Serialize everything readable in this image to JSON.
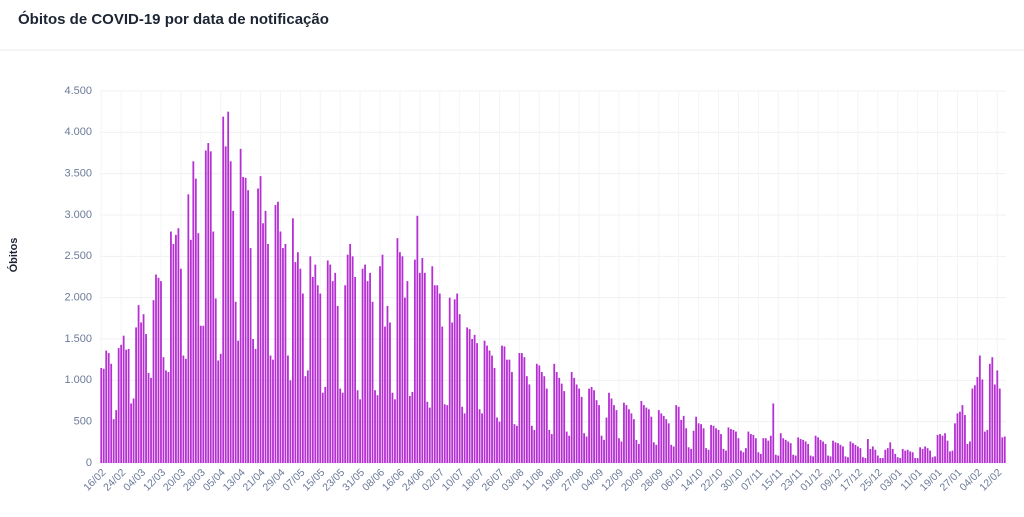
{
  "chart_data": {
    "type": "bar",
    "title": "Óbitos de COVID-19 por data de notificação",
    "y_label": "Óbitos",
    "color": "#b52fd3",
    "grid": true,
    "ylim": [
      0,
      4500
    ],
    "yticks": [
      0,
      500,
      {
        "value": 1000,
        "label": "1.000"
      },
      {
        "value": 1500,
        "label": "1.500"
      },
      {
        "value": 2000,
        "label": "2.000"
      },
      {
        "value": 2500,
        "label": "2.500"
      },
      {
        "value": 3000,
        "label": "3.000"
      },
      {
        "value": 3500,
        "label": "3.500"
      },
      {
        "value": 4000,
        "label": "4.000"
      },
      {
        "value": 4500,
        "label": "4.500"
      }
    ],
    "categories": [
      "16/02",
      null,
      null,
      null,
      null,
      null,
      null,
      null,
      "24/02",
      null,
      null,
      null,
      null,
      null,
      null,
      null,
      "04/03",
      null,
      null,
      null,
      null,
      null,
      null,
      null,
      "12/03",
      null,
      null,
      null,
      null,
      null,
      null,
      null,
      "20/03",
      null,
      null,
      null,
      null,
      null,
      null,
      null,
      "28/03",
      null,
      null,
      null,
      null,
      null,
      null,
      null,
      "05/04",
      null,
      null,
      null,
      null,
      null,
      null,
      null,
      "13/04",
      null,
      null,
      null,
      null,
      null,
      null,
      null,
      "21/04",
      null,
      null,
      null,
      null,
      null,
      null,
      null,
      "29/04",
      null,
      null,
      null,
      null,
      null,
      null,
      null,
      "07/05",
      null,
      null,
      null,
      null,
      null,
      null,
      null,
      "15/05",
      null,
      null,
      null,
      null,
      null,
      null,
      null,
      "23/05",
      null,
      null,
      null,
      null,
      null,
      null,
      null,
      "31/05",
      null,
      null,
      null,
      null,
      null,
      null,
      null,
      "08/06",
      null,
      null,
      null,
      null,
      null,
      null,
      null,
      "16/06",
      null,
      null,
      null,
      null,
      null,
      null,
      null,
      "24/06",
      null,
      null,
      null,
      null,
      null,
      null,
      null,
      "02/07",
      null,
      null,
      null,
      null,
      null,
      null,
      null,
      "10/07",
      null,
      null,
      null,
      null,
      null,
      null,
      null,
      "18/07",
      null,
      null,
      null,
      null,
      null,
      null,
      null,
      "26/07",
      null,
      null,
      null,
      null,
      null,
      null,
      null,
      "03/08",
      null,
      null,
      null,
      null,
      null,
      null,
      null,
      "11/08",
      null,
      null,
      null,
      null,
      null,
      null,
      null,
      "19/08",
      null,
      null,
      null,
      null,
      null,
      null,
      null,
      "27/08",
      null,
      null,
      null,
      null,
      null,
      null,
      null,
      "04/09",
      null,
      null,
      null,
      null,
      null,
      null,
      null,
      "12/09",
      null,
      null,
      null,
      null,
      null,
      null,
      null,
      "20/09",
      null,
      null,
      null,
      null,
      null,
      null,
      null,
      "28/09",
      null,
      null,
      null,
      null,
      null,
      null,
      null,
      "06/10",
      null,
      null,
      null,
      null,
      null,
      null,
      null,
      "14/10",
      null,
      null,
      null,
      null,
      null,
      null,
      null,
      "22/10",
      null,
      null,
      null,
      null,
      null,
      null,
      null,
      "30/10",
      null,
      null,
      null,
      null,
      null,
      null,
      null,
      "07/11",
      null,
      null,
      null,
      null,
      null,
      null,
      null,
      "15/11",
      null,
      null,
      null,
      null,
      null,
      null,
      null,
      "23/11",
      null,
      null,
      null,
      null,
      null,
      null,
      null,
      "01/12",
      null,
      null,
      null,
      null,
      null,
      null,
      null,
      "09/12",
      null,
      null,
      null,
      null,
      null,
      null,
      null,
      "17/12",
      null,
      null,
      null,
      null,
      null,
      null,
      null,
      "25/12",
      null,
      null,
      null,
      null,
      null,
      null,
      null,
      "03/01",
      null,
      null,
      null,
      null,
      null,
      null,
      null,
      "11/01",
      null,
      null,
      null,
      null,
      null,
      null,
      null,
      "19/01",
      null,
      null,
      null,
      null,
      null,
      null,
      null,
      "27/01",
      null,
      null,
      null,
      null,
      null,
      null,
      null,
      "04/02",
      null,
      null,
      null,
      null,
      null,
      null,
      null,
      "12/02",
      null,
      null,
      null
    ],
    "values": [
      1150,
      1140,
      1360,
      1330,
      1200,
      530,
      640,
      1390,
      1430,
      1540,
      1370,
      1380,
      720,
      780,
      1640,
      1910,
      1700,
      1800,
      1560,
      1090,
      1030,
      1970,
      2280,
      2240,
      2200,
      1280,
      1120,
      1100,
      2800,
      2650,
      2760,
      2840,
      2350,
      1300,
      1260,
      3250,
      2700,
      3650,
      3440,
      2780,
      1660,
      1660,
      3780,
      3870,
      3770,
      2800,
      1990,
      1240,
      1320,
      4190,
      3830,
      4250,
      3650,
      3050,
      1950,
      1480,
      3800,
      3460,
      3450,
      3300,
      2600,
      1500,
      1380,
      3320,
      3470,
      2900,
      3050,
      2650,
      1300,
      1250,
      3120,
      3160,
      2800,
      2600,
      2650,
      1300,
      1000,
      2960,
      2430,
      2550,
      2350,
      2050,
      1050,
      1120,
      2500,
      2250,
      2400,
      2150,
      2050,
      850,
      920,
      2450,
      2400,
      2200,
      2300,
      1900,
      900,
      850,
      2150,
      2520,
      2650,
      2500,
      2250,
      880,
      770,
      2350,
      2400,
      2200,
      2300,
      1950,
      880,
      820,
      2380,
      2520,
      1650,
      1900,
      1700,
      850,
      770,
      2720,
      2550,
      2500,
      2000,
      2200,
      810,
      860,
      2460,
      2990,
      2300,
      2480,
      2300,
      740,
      670,
      2380,
      2150,
      2150,
      2050,
      1650,
      710,
      700,
      2000,
      1700,
      1980,
      2050,
      1800,
      680,
      600,
      1640,
      1620,
      1500,
      1550,
      1450,
      650,
      600,
      1480,
      1420,
      1360,
      1300,
      1150,
      550,
      500,
      1420,
      1410,
      1250,
      1250,
      1100,
      470,
      450,
      1330,
      1330,
      1280,
      1050,
      950,
      450,
      400,
      1200,
      1180,
      1100,
      1050,
      900,
      400,
      350,
      1200,
      1100,
      1030,
      960,
      870,
      380,
      330,
      1100,
      1030,
      950,
      900,
      800,
      360,
      320,
      900,
      920,
      880,
      760,
      700,
      330,
      280,
      550,
      850,
      780,
      700,
      640,
      300,
      260,
      730,
      700,
      650,
      600,
      530,
      280,
      230,
      750,
      700,
      670,
      650,
      560,
      250,
      220,
      640,
      600,
      570,
      530,
      480,
      220,
      200,
      700,
      680,
      520,
      570,
      420,
      190,
      170,
      390,
      560,
      480,
      470,
      420,
      180,
      160,
      460,
      450,
      420,
      400,
      350,
      170,
      150,
      430,
      410,
      400,
      380,
      300,
      150,
      130,
      180,
      380,
      350,
      340,
      300,
      130,
      110,
      300,
      300,
      270,
      330,
      720,
      100,
      90,
      360,
      300,
      280,
      260,
      240,
      100,
      90,
      310,
      290,
      280,
      260,
      230,
      90,
      80,
      330,
      310,
      280,
      260,
      230,
      90,
      80,
      270,
      250,
      240,
      220,
      200,
      80,
      70,
      260,
      240,
      220,
      200,
      180,
      70,
      60,
      290,
      170,
      200,
      160,
      90,
      60,
      60,
      160,
      180,
      250,
      170,
      110,
      70,
      60,
      170,
      150,
      160,
      140,
      130,
      60,
      60,
      190,
      170,
      200,
      180,
      150,
      70,
      80,
      340,
      350,
      330,
      360,
      270,
      140,
      150,
      480,
      600,
      620,
      700,
      580,
      230,
      260,
      900,
      940,
      1040,
      1300,
      1010,
      380,
      400,
      1200,
      1280,
      950,
      1120,
      900,
      310,
      320
    ]
  }
}
